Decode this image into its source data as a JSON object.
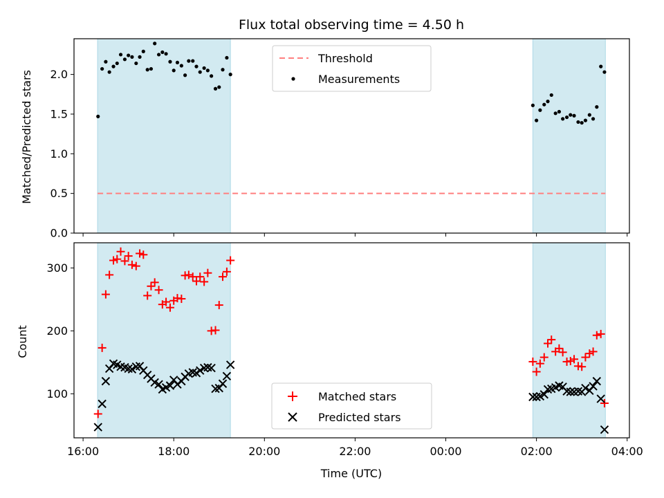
{
  "chart_data": {
    "type": "scatter",
    "title": "Flux total observing time = 4.50 h",
    "xlabel": "Time (UTC)",
    "x_ticks": [
      "16:00",
      "18:00",
      "20:00",
      "22:00",
      "00:00",
      "02:00",
      "04:00"
    ],
    "x_range_hours": [
      15.8,
      28.05
    ],
    "shaded_intervals": [
      [
        16.32,
        19.25
      ],
      [
        25.92,
        27.52
      ]
    ],
    "colors": {
      "shade": "#add8e6",
      "threshold": "#ff7f7f",
      "matched": "#ff0000",
      "predicted": "#000000",
      "measurements": "#000000"
    },
    "panels": [
      {
        "ylabel": "Matched/Predicted stars",
        "ylim": [
          0,
          2.45
        ],
        "y_ticks": [
          "0.0",
          "0.5",
          "1.0",
          "1.5",
          "2.0"
        ],
        "legend_position": "top-center",
        "threshold": {
          "name": "Threshold",
          "y": 0.5,
          "x": [
            16.32,
            27.52
          ]
        },
        "series": [
          {
            "name": "Measurements",
            "marker": "dot",
            "x": [
              16.33,
              16.42,
              16.5,
              16.58,
              16.67,
              16.75,
              16.83,
              16.92,
              17.0,
              17.08,
              17.17,
              17.25,
              17.33,
              17.42,
              17.5,
              17.58,
              17.67,
              17.75,
              17.83,
              17.92,
              18.0,
              18.08,
              18.17,
              18.25,
              18.33,
              18.42,
              18.5,
              18.58,
              18.67,
              18.75,
              18.83,
              18.92,
              19.0,
              19.08,
              19.17,
              19.25,
              25.92,
              26.0,
              26.08,
              26.17,
              26.25,
              26.33,
              26.42,
              26.5,
              26.58,
              26.67,
              26.75,
              26.83,
              26.92,
              27.0,
              27.08,
              27.17,
              27.25,
              27.33,
              27.42,
              27.5
            ],
            "y": [
              1.47,
              2.07,
              2.16,
              2.03,
              2.1,
              2.14,
              2.25,
              2.19,
              2.24,
              2.22,
              2.14,
              2.22,
              2.29,
              2.06,
              2.07,
              2.39,
              2.25,
              2.28,
              2.26,
              2.16,
              2.05,
              2.15,
              2.11,
              1.99,
              2.17,
              2.17,
              2.1,
              2.03,
              2.08,
              2.05,
              1.98,
              1.82,
              1.84,
              2.06,
              2.21,
              2.0,
              1.61,
              1.42,
              1.55,
              1.62,
              1.66,
              1.74,
              1.51,
              1.53,
              1.44,
              1.46,
              1.49,
              1.48,
              1.4,
              1.39,
              1.42,
              1.49,
              1.44,
              1.59,
              2.1,
              2.03
            ]
          }
        ]
      },
      {
        "ylabel": "Count",
        "ylim": [
          30,
          340
        ],
        "y_ticks": [
          "100",
          "200",
          "300"
        ],
        "legend_position": "bottom-center",
        "series": [
          {
            "name": "Matched stars",
            "marker": "plus",
            "x": [
              16.33,
              16.42,
              16.5,
              16.58,
              16.67,
              16.75,
              16.83,
              16.92,
              17.0,
              17.08,
              17.17,
              17.25,
              17.33,
              17.42,
              17.5,
              17.58,
              17.67,
              17.75,
              17.83,
              17.92,
              18.0,
              18.08,
              18.17,
              18.25,
              18.33,
              18.42,
              18.5,
              18.58,
              18.67,
              18.75,
              18.83,
              18.92,
              19.0,
              19.08,
              19.17,
              19.25,
              25.92,
              26.0,
              26.08,
              26.17,
              26.25,
              26.33,
              26.42,
              26.5,
              26.58,
              26.67,
              26.75,
              26.83,
              26.92,
              27.0,
              27.08,
              27.17,
              27.25,
              27.33,
              27.42,
              27.5
            ],
            "y": [
              68,
              173,
              258,
              289,
              312,
              314,
              326,
              311,
              319,
              305,
              303,
              323,
              321,
              256,
              271,
              277,
              265,
              242,
              246,
              237,
              248,
              252,
              251,
              288,
              289,
              286,
              279,
              286,
              278,
              292,
              200,
              201,
              241,
              286,
              294,
              312,
              151,
              135,
              148,
              158,
              180,
              186,
              167,
              172,
              166,
              151,
              152,
              155,
              144,
              143,
              158,
              164,
              167,
              193,
              195,
              85
            ]
          },
          {
            "name": "Predicted stars",
            "marker": "x",
            "x": [
              16.33,
              16.42,
              16.5,
              16.58,
              16.67,
              16.75,
              16.83,
              16.92,
              17.0,
              17.08,
              17.17,
              17.25,
              17.33,
              17.42,
              17.5,
              17.58,
              17.67,
              17.75,
              17.83,
              17.92,
              18.0,
              18.08,
              18.17,
              18.25,
              18.33,
              18.42,
              18.5,
              18.58,
              18.67,
              18.75,
              18.83,
              18.92,
              19.0,
              19.08,
              19.17,
              19.25,
              25.92,
              26.0,
              26.08,
              26.17,
              26.25,
              26.33,
              26.42,
              26.5,
              26.58,
              26.67,
              26.75,
              26.83,
              26.92,
              27.0,
              27.08,
              27.17,
              27.25,
              27.33,
              27.42,
              27.5
            ],
            "y": [
              47,
              84,
              120,
              140,
              148,
              146,
              143,
              142,
              140,
              139,
              143,
              144,
              137,
              130,
              124,
              118,
              115,
              107,
              110,
              113,
              122,
              115,
              120,
              127,
              132,
              134,
              133,
              137,
              141,
              142,
              141,
              108,
              109,
              116,
              128,
              146,
              95,
              95,
              96,
              99,
              107,
              108,
              110,
              113,
              111,
              104,
              103,
              103,
              104,
              103,
              109,
              105,
              112,
              120,
              92,
              43
            ]
          }
        ]
      }
    ]
  }
}
